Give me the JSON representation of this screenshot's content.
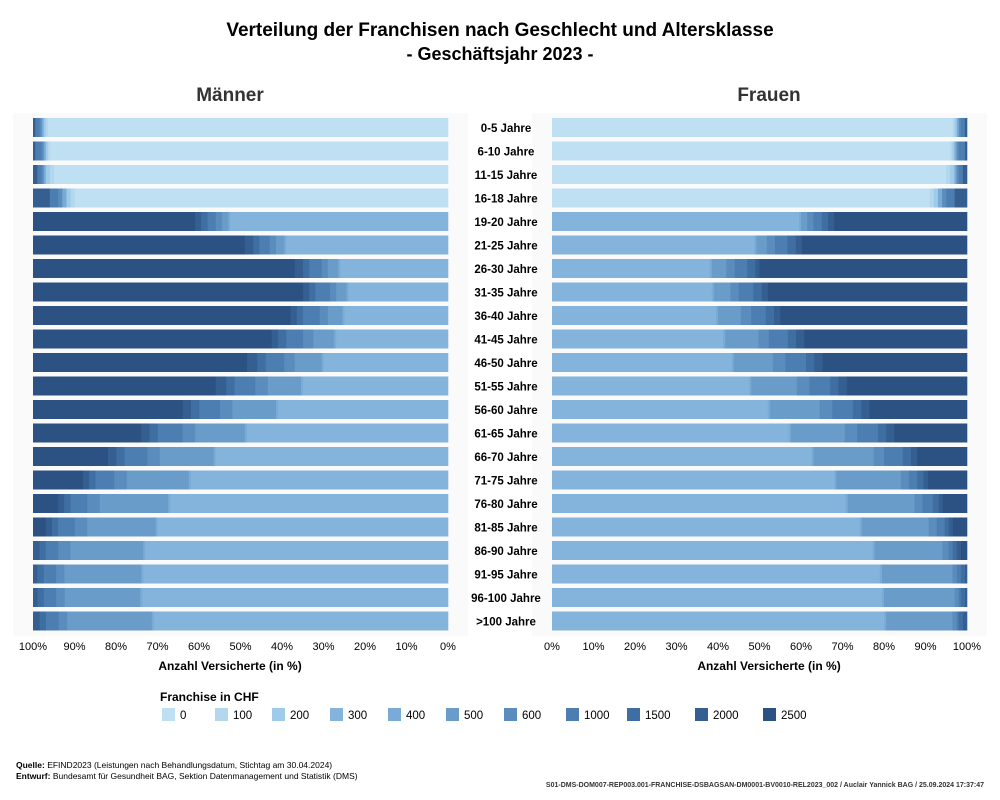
{
  "chart_data": {
    "type": "bar",
    "subtype": "stacked-horizontal-100pct",
    "title": "Verteilung der Franchisen nach Geschlecht und Altersklasse",
    "subtitle": "- Geschäftsjahr 2023 -",
    "xlabel": "Anzahl Versicherte (in %)",
    "xlim": [
      0,
      100
    ],
    "ticks": [
      "100%",
      "90%",
      "80%",
      "70%",
      "60%",
      "50%",
      "40%",
      "30%",
      "20%",
      "10%",
      "0%"
    ],
    "ticks_female": [
      "0%",
      "10%",
      "20%",
      "30%",
      "40%",
      "50%",
      "60%",
      "70%",
      "80%",
      "90%",
      "100%"
    ],
    "legend": {
      "title": "Franchise in CHF",
      "position": "bottom",
      "labels": [
        "0",
        "100",
        "200",
        "300",
        "400",
        "500",
        "600",
        "1000",
        "1500",
        "2000",
        "2500"
      ]
    },
    "categories": [
      "0-5 Jahre",
      "6-10 Jahre",
      "11-15 Jahre",
      "16-18 Jahre",
      "19-20 Jahre",
      "21-25 Jahre",
      "26-30 Jahre",
      "31-35 Jahre",
      "36-40 Jahre",
      "41-45 Jahre",
      "46-50 Jahre",
      "51-55 Jahre",
      "56-60 Jahre",
      "61-65 Jahre",
      "66-70 Jahre",
      "71-75 Jahre",
      "76-80 Jahre",
      "81-85 Jahre",
      "86-90 Jahre",
      "91-95 Jahre",
      "96-100 Jahre",
      ">100 Jahre"
    ],
    "panels": [
      {
        "name": "Männer",
        "series": [
          {
            "name": "0",
            "values": [
              96.5,
              96,
              95,
              90,
              0,
              0,
              0,
              0,
              0,
              0,
              0,
              0,
              0,
              0,
              0,
              0,
              0,
              0,
              0,
              0,
              0,
              0
            ]
          },
          {
            "name": "100",
            "values": [
              0.5,
              0.5,
              1,
              1,
              0,
              0,
              0,
              0,
              0,
              0,
              0,
              0,
              0,
              0,
              0,
              0,
              0,
              0,
              0,
              0,
              0,
              0
            ]
          },
          {
            "name": "200",
            "values": [
              0.5,
              0.5,
              1,
              1,
              0,
              0,
              0,
              0,
              0,
              0,
              0,
              0,
              0,
              0,
              0,
              0,
              0,
              0,
              0,
              0,
              0,
              0
            ]
          },
          {
            "name": "300",
            "values": [
              0,
              0,
              0,
              0,
              52.5,
              39,
              26,
              24,
              25,
              27,
              30,
              35,
              41,
              48.5,
              56,
              62,
              67,
              70,
              73,
              73.5,
              73,
              69.5
            ]
          },
          {
            "name": "400",
            "values": [
              0.5,
              0.5,
              0.5,
              1,
              0.5,
              0.5,
              0.5,
              0.5,
              0.5,
              0.5,
              0.5,
              0.5,
              0.5,
              0.5,
              0.5,
              0.5,
              0.5,
              0.5,
              0.5,
              0.5,
              0.5,
              0.5
            ]
          },
          {
            "name": "500",
            "values": [
              0,
              0,
              0,
              0,
              1.5,
              2,
              2.5,
              2.5,
              3.5,
              5,
              6.5,
              8,
              10.5,
              12,
              13,
              15,
              16.5,
              16.5,
              17.5,
              18.5,
              18,
              20
            ]
          },
          {
            "name": "600",
            "values": [
              0.5,
              0.5,
              0.5,
              1,
              1.5,
              1.5,
              1.5,
              1.5,
              2,
              2.5,
              2.5,
              3,
              3,
              3,
              3,
              3,
              3,
              3,
              3,
              2,
              2,
              2
            ]
          },
          {
            "name": "1000",
            "values": [
              1,
              1.5,
              1,
              2,
              2,
              2.5,
              3,
              3.5,
              4,
              4,
              4.5,
              5,
              5,
              6,
              5.5,
              4.5,
              4,
              4,
              3,
              3,
              3,
              3
            ]
          },
          {
            "name": "1500",
            "values": [
              0,
              0,
              0,
              0,
              1.5,
              1.5,
              1.5,
              1.5,
              1.5,
              2,
              2,
              2,
              2,
              2,
              2,
              1.5,
              1.5,
              1.5,
              1.5,
              1.5,
              1.5,
              1.5
            ]
          },
          {
            "name": "2000",
            "values": [
              0.5,
              0.5,
              1,
              4,
              1.5,
              2,
              2,
              1.5,
              1.5,
              1.5,
              2.5,
              2.5,
              2,
              2,
              2,
              1.5,
              1.5,
              1.5,
              1.5,
              1,
              1,
              1.5
            ]
          },
          {
            "name": "2500",
            "values": [
              0,
              0,
              0,
              0,
              39,
              51,
              63,
              65,
              62,
              57.5,
              51.5,
              44,
              36,
              26,
              18,
              12,
              6,
              3,
              0,
              0,
              0,
              0
            ]
          }
        ]
      },
      {
        "name": "Frauen",
        "series": [
          {
            "name": "0",
            "values": [
              97,
              95.5,
              94,
              91,
              0,
              0,
              0,
              0,
              0,
              0,
              0,
              0,
              0,
              0,
              0,
              0,
              0,
              0,
              0,
              0,
              0,
              0
            ]
          },
          {
            "name": "100",
            "values": [
              0.5,
              0.5,
              1,
              1,
              0,
              0,
              0,
              0,
              0,
              0,
              0,
              0,
              0,
              0,
              0,
              0,
              0,
              0,
              0,
              0,
              0,
              0
            ]
          },
          {
            "name": "200",
            "values": [
              0.5,
              0.5,
              1,
              1,
              0,
              0,
              0,
              0,
              0,
              0,
              0,
              0,
              0,
              0,
              0,
              0,
              0,
              0,
              0,
              0,
              0,
              0
            ]
          },
          {
            "name": "300",
            "values": [
              0,
              0,
              0,
              0,
              59.5,
              49,
              38,
              38.5,
              39.5,
              41,
              43.5,
              47.5,
              52,
              57,
              62.5,
              68,
              72.5,
              76,
              78,
              79,
              79.5,
              80
            ]
          },
          {
            "name": "400",
            "values": [
              0.5,
              0.5,
              0.5,
              1,
              0.5,
              0.5,
              0.5,
              0.5,
              0.5,
              0.5,
              0.5,
              0.5,
              0.5,
              0.5,
              0.5,
              0.5,
              0.5,
              0.5,
              0.5,
              0.5,
              0.5,
              0.5
            ]
          },
          {
            "name": "500",
            "values": [
              0,
              0,
              0,
              0,
              1.5,
              2.5,
              3.5,
              4,
              5.5,
              8,
              9.5,
              11,
              12,
              13,
              14.5,
              15.5,
              16.5,
              16.5,
              16.5,
              17,
              17,
              16
            ]
          },
          {
            "name": "600",
            "values": [
              0.5,
              0.5,
              0.5,
              1,
              1.5,
              2,
              2,
              2,
              2.5,
              2.5,
              3,
              3,
              3,
              3,
              2.5,
              2,
              2,
              2,
              1.5,
              1,
              1,
              1
            ]
          },
          {
            "name": "1000",
            "values": [
              1,
              1.5,
              1,
              2,
              2,
              3,
              3,
              3.5,
              3.5,
              4.5,
              5,
              5,
              5,
              5,
              4.5,
              2,
              2.5,
              2,
              1,
              1,
              0.5,
              0.5
            ]
          },
          {
            "name": "1500",
            "values": [
              0,
              0,
              0,
              0,
              1.5,
              2,
              2,
              2,
              2,
              2,
              2,
              2,
              2,
              2,
              2,
              1.5,
              1.5,
              1,
              1,
              1,
              1,
              1
            ]
          },
          {
            "name": "2000",
            "values": [
              0.5,
              0.5,
              1,
              3,
              1.5,
              1.5,
              1,
              1.5,
              1.5,
              2,
              2,
              2,
              2,
              2,
              1.5,
              1,
              1,
              1,
              1,
              0.5,
              0.5,
              1
            ]
          },
          {
            "name": "2500",
            "values": [
              0,
              0,
              0,
              0,
              32,
              40,
              50,
              48,
              45,
              39,
              35,
              29,
              23.5,
              17.5,
              12,
              9.5,
              6,
              3.5,
              1.5,
              0,
              0,
              0
            ]
          }
        ]
      }
    ]
  },
  "footer": {
    "source_label": "Quelle:",
    "source_text": "EFIND2023 (Leistungen nach Behandlungsdatum, Stichtag am 30.04.2024)",
    "draft_label": "Entwurf:",
    "draft_text": "Bundesamt für Gesundheit BAG, Sektion Datenmanagement und Statistik (DMS)",
    "reference": "S01-DMS-DOM007-REP003.001-FRANCHISE-DSBAGSAN-DM0001-BV0010-REL2023_002 / Auclair Yannick BAG / 25.09.2024 17:37:47"
  },
  "colors": {
    "0": "#bfe0f2",
    "100": "#b3d7ed",
    "200": "#9dcbe9",
    "300": "#84b4dc",
    "400": "#7aabd6",
    "500": "#6a9cca",
    "600": "#5a8cbd",
    "1000": "#4d7eb1",
    "1500": "#3f6ea2",
    "2000": "#355f91",
    "2500": "#2c5283"
  }
}
